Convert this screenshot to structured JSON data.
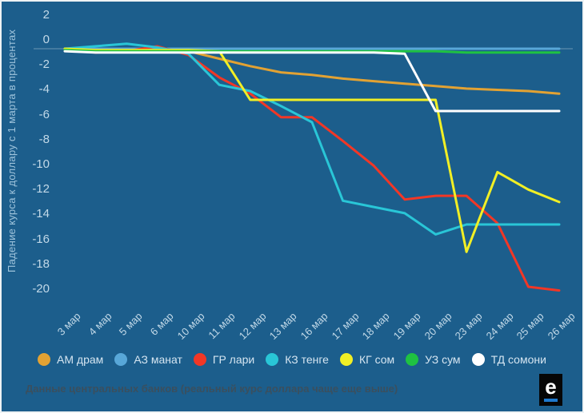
{
  "chart_data": {
    "type": "line",
    "title": "",
    "xlabel": "",
    "ylabel": "Падение курса к доллару с 1 марта в процентах",
    "ylim": [
      -20,
      2
    ],
    "yticks": [
      2,
      0,
      -2,
      -4,
      -6,
      -8,
      -10,
      -12,
      -14,
      -16,
      -18,
      -20
    ],
    "grid": false,
    "legend_position": "bottom",
    "categories": [
      "3 мар",
      "4 мар",
      "5 мар",
      "6 мар",
      "10 мар",
      "11 мар",
      "12 мар",
      "13 мар",
      "16 мар",
      "17 мар",
      "18 мар",
      "19 мар",
      "20 мар",
      "23 мар",
      "24 мар",
      "25 мар",
      "26 мар"
    ],
    "series": [
      {
        "id": "am-dram",
        "name": "АМ драм",
        "color": "#E2A233",
        "values": [
          0,
          -0.1,
          -0.1,
          -0.2,
          -0.2,
          -0.8,
          -1.4,
          -1.9,
          -2.1,
          -2.4,
          -2.6,
          -2.8,
          -3.0,
          -3.2,
          -3.3,
          -3.4,
          -3.6
        ]
      },
      {
        "id": "az-manat",
        "name": "АЗ манат",
        "color": "#58A7D8",
        "values": [
          0,
          0,
          0,
          0,
          0,
          0,
          0,
          0,
          0,
          0,
          0,
          0,
          0,
          0,
          0,
          0,
          0
        ]
      },
      {
        "id": "gr-lari",
        "name": "ГР лари",
        "color": "#F23726",
        "values": [
          -0.1,
          -0.3,
          -0.2,
          0.2,
          -0.5,
          -2.3,
          -3.6,
          -5.5,
          -5.5,
          -7.4,
          -9.4,
          -12.1,
          -11.8,
          -11.8,
          -14.0,
          -19.1,
          -19.4
        ]
      },
      {
        "id": "kz-tenge",
        "name": "КЗ тенге",
        "color": "#29C6D7",
        "values": [
          0,
          0.2,
          0.4,
          0.1,
          -0.4,
          -2.9,
          -3.4,
          -4.6,
          -5.9,
          -12.2,
          -12.7,
          -13.2,
          -14.9,
          -14.1,
          -14.1,
          -14.1,
          -14.1
        ]
      },
      {
        "id": "kg-som",
        "name": "КГ сом",
        "color": "#F1EF25",
        "values": [
          0,
          -0.1,
          -0.1,
          -0.1,
          -0.1,
          -0.2,
          -4.1,
          -4.1,
          -4.1,
          -4.1,
          -4.1,
          -4.1,
          -4.1,
          -16.3,
          -9.9,
          -11.3,
          -12.3
        ]
      },
      {
        "id": "uz-sum",
        "name": "УЗ сум",
        "color": "#1FC242",
        "values": [
          -0.1,
          -0.2,
          -0.2,
          -0.2,
          -0.2,
          -0.2,
          -0.2,
          -0.2,
          -0.2,
          -0.2,
          -0.2,
          -0.2,
          -0.2,
          -0.3,
          -0.3,
          -0.3,
          -0.3
        ]
      },
      {
        "id": "td-somoni",
        "name": "ТД сомони",
        "color": "#FFFFFF",
        "values": [
          -0.2,
          -0.3,
          -0.3,
          -0.3,
          -0.3,
          -0.3,
          -0.3,
          -0.3,
          -0.3,
          -0.3,
          -0.3,
          -0.4,
          -5.0,
          -5.0,
          -5.0,
          -5.0,
          -5.0
        ]
      }
    ]
  },
  "footer": {
    "note": "Данные центральных банков (реальный курс доллара чаще еще выше)",
    "logo_letter": "e"
  },
  "colors": {
    "background": "#1C5E8C",
    "axis_text": "#C2D9E8",
    "axis_title": "#9FC4DC",
    "legend_text": "#D5E5F1",
    "note_text": "#3A4F5E",
    "zero_line": "rgba(255,255,255,0.35)",
    "logo_background": "#060606",
    "logo_underline": "#1E79CE"
  }
}
